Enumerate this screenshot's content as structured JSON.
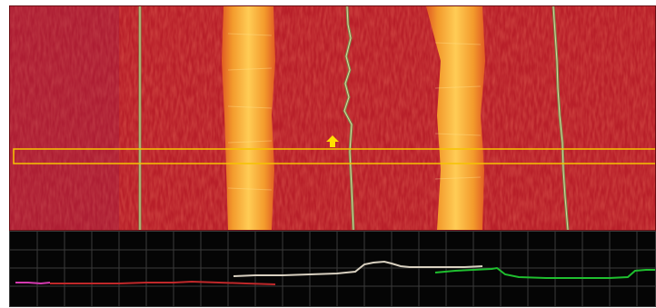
{
  "viewer": {
    "image_panel": {
      "name": "height-map",
      "colors": {
        "background": "#bb2229",
        "stripe": "#f39a2c",
        "stripe_core": "#ffd25a",
        "edge_line": "#c8c27a",
        "roi": "#f5c400",
        "cursor": "#ffe100"
      },
      "stripes": 2,
      "edge_lines": 3,
      "cursor_icon": "arrow-up-icon"
    },
    "profile_panel": {
      "colors": {
        "background": "#050505",
        "grid": "#3a3a3a",
        "magenta": "#d43ab0",
        "red": "#c0282a",
        "white": "#d8d0c0",
        "green": "#1fbf2f"
      },
      "vertical_grid_lines": 24,
      "horizontal_grid_lines": 4
    }
  }
}
